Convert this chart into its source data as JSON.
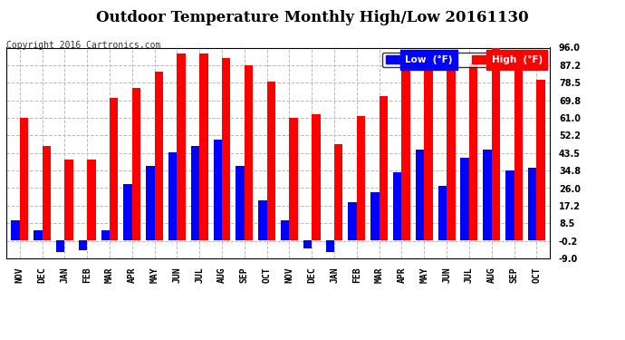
{
  "title": "Outdoor Temperature Monthly High/Low 20161130",
  "copyright": "Copyright 2016 Cartronics.com",
  "legend_low": "Low  (°F)",
  "legend_high": "High  (°F)",
  "months": [
    "NOV",
    "DEC",
    "JAN",
    "FEB",
    "MAR",
    "APR",
    "MAY",
    "JUN",
    "JUL",
    "AUG",
    "SEP",
    "OCT",
    "NOV",
    "DEC",
    "JAN",
    "FEB",
    "MAR",
    "APR",
    "MAY",
    "JUN",
    "JUL",
    "AUG",
    "SEP",
    "OCT"
  ],
  "high_vals": [
    61.0,
    47.0,
    40.0,
    40.0,
    71.0,
    76.0,
    84.0,
    93.0,
    93.0,
    91.0,
    87.0,
    79.0,
    61.0,
    63.0,
    48.0,
    62.0,
    72.0,
    86.0,
    88.0,
    88.0,
    88.0,
    96.0,
    93.0,
    80.0
  ],
  "low_vals": [
    10.0,
    5.0,
    -6.0,
    -5.0,
    5.0,
    28.0,
    37.0,
    44.0,
    47.0,
    50.0,
    37.0,
    20.0,
    10.0,
    -4.0,
    -6.0,
    19.0,
    24.0,
    34.0,
    45.0,
    27.0,
    41.0,
    45.0,
    35.0,
    36.0
  ],
  "yticks": [
    -9.0,
    -0.2,
    8.5,
    17.2,
    26.0,
    34.8,
    43.5,
    52.2,
    61.0,
    69.8,
    78.5,
    87.2,
    96.0
  ],
  "ylim": [
    -9.0,
    96.0
  ],
  "bar_color_high": "#ff0000",
  "bar_color_low": "#0000ff",
  "bg_color": "#ffffff",
  "grid_color": "#bbbbbb",
  "title_fontsize": 12,
  "copyright_fontsize": 7,
  "tick_fontsize": 7
}
